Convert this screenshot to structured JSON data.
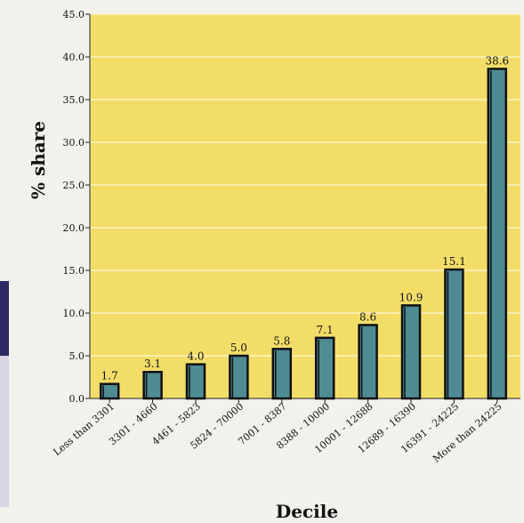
{
  "colors": {
    "plot_bg": "#f3dd69",
    "grid": "#fbf3c4",
    "bar_fill": "#4f8b93",
    "bar_edge": "#111111",
    "page_bg": "#f3f1ec",
    "side_dark": "#2e2a63",
    "side_light": "#c9c4d8"
  },
  "chart_data": {
    "type": "bar",
    "title": "",
    "xlabel": "Decile",
    "ylabel": "% share",
    "ylim": [
      0,
      45
    ],
    "grid": true,
    "y_ticks": [
      "0.0",
      "5.0",
      "10.0",
      "15.0",
      "20.0",
      "25.0",
      "30.0",
      "35.0",
      "40.0",
      "45.0"
    ],
    "categories": [
      "Less than 3301",
      "3301 - 4660",
      "4461 - 5823",
      "5824 - 70000",
      "7001 - 8387",
      "8388 - 10000",
      "10001 - 12688",
      "12689 - 16390",
      "16391 - 24225",
      "More than 24225"
    ],
    "values": [
      1.7,
      3.1,
      4.0,
      5.0,
      5.8,
      7.1,
      8.6,
      10.9,
      15.1,
      38.6
    ],
    "data_labels": [
      "1.7",
      "3.1",
      "4.0",
      "5.0",
      "5.8",
      "7.1",
      "8.6",
      "10.9",
      "15.1",
      "38.6"
    ]
  }
}
